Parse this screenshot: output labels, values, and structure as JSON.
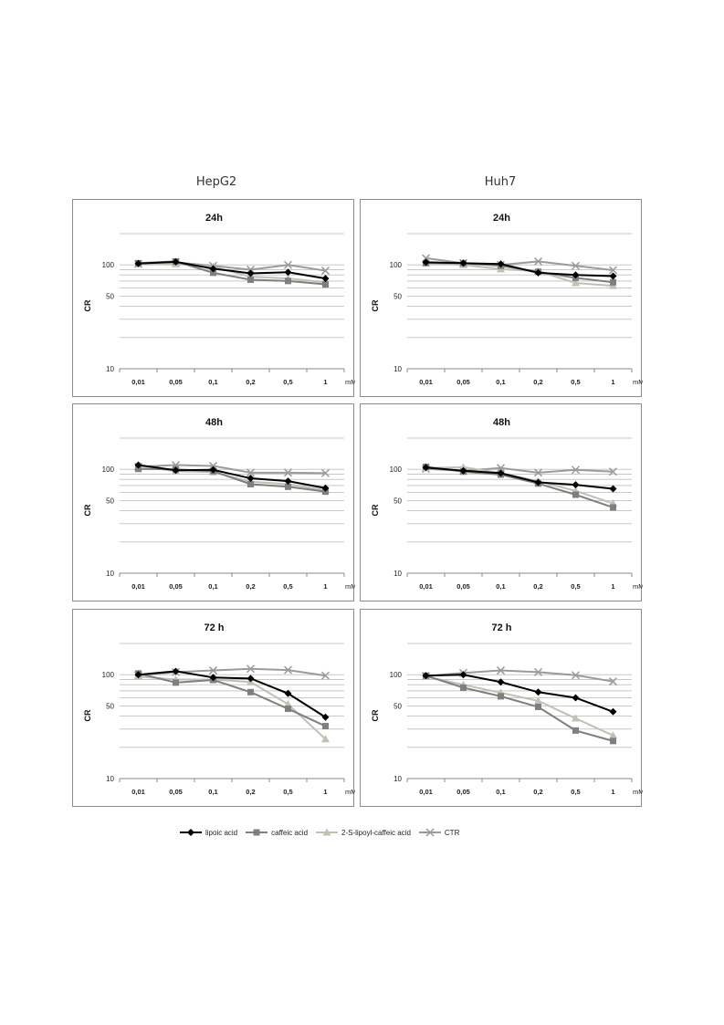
{
  "columns": [
    "HepG2",
    "Huh7"
  ],
  "colors": {
    "lipoic": "#000000",
    "caffeic": "#7f7f7f",
    "lipoyl": "#bfc1b4",
    "ctr": "#9a9a9a",
    "grid": "#c8c8c8",
    "border": "#8c8c8c"
  },
  "legend": [
    {
      "key": "lipoic",
      "label": "lipoic acid",
      "marker": "diamond"
    },
    {
      "key": "caffeic",
      "label": "caffeic acid",
      "marker": "square"
    },
    {
      "key": "lipoyl",
      "label": "2-S-lipoyl-caffeic acid",
      "marker": "triangle"
    },
    {
      "key": "ctr",
      "label": "CTR",
      "marker": "x"
    }
  ],
  "chart_data": [
    {
      "type": "line",
      "cell": "HepG2",
      "title": "24h",
      "ylabel": "CR",
      "xunit": "mM",
      "yscale": "log",
      "ylim": [
        10,
        200
      ],
      "yticks": [
        10,
        50,
        100
      ],
      "categories": [
        "0,01",
        "0,05",
        "0,1",
        "0,2",
        "0,5",
        "1"
      ],
      "series": [
        {
          "key": "lipoic",
          "name": "lipoic acid",
          "values": [
            103,
            107,
            92,
            83,
            85,
            74
          ]
        },
        {
          "key": "caffeic",
          "name": "caffeic acid",
          "values": [
            104,
            108,
            84,
            72,
            70,
            65
          ]
        },
        {
          "key": "lipoyl",
          "name": "2-S-lipoyl-caffeic acid",
          "values": [
            102,
            102,
            96,
            77,
            74,
            68
          ]
        },
        {
          "key": "ctr",
          "name": "CTR",
          "values": [
            102,
            106,
            98,
            90,
            100,
            88
          ]
        }
      ]
    },
    {
      "type": "line",
      "cell": "Huh7",
      "title": "24h",
      "ylabel": "CR",
      "xunit": "mM",
      "yscale": "log",
      "ylim": [
        10,
        200
      ],
      "yticks": [
        10,
        50,
        100
      ],
      "categories": [
        "0,01",
        "0,05",
        "0,1",
        "0,2",
        "0,5",
        "1"
      ],
      "series": [
        {
          "key": "lipoic",
          "name": "lipoic acid",
          "values": [
            106,
            104,
            102,
            84,
            80,
            78
          ]
        },
        {
          "key": "caffeic",
          "name": "caffeic acid",
          "values": [
            104,
            104,
            98,
            86,
            75,
            68
          ]
        },
        {
          "key": "lipoyl",
          "name": "2-S-lipoyl-caffeic acid",
          "values": [
            104,
            100,
            91,
            87,
            67,
            63
          ]
        },
        {
          "key": "ctr",
          "name": "CTR",
          "values": [
            116,
            104,
            100,
            108,
            98,
            89
          ]
        }
      ]
    },
    {
      "type": "line",
      "cell": "HepG2",
      "title": "48h",
      "ylabel": "CR",
      "xunit": "mM",
      "yscale": "log",
      "ylim": [
        10,
        200
      ],
      "yticks": [
        10,
        50,
        100
      ],
      "categories": [
        "0,01",
        "0,05",
        "0,1",
        "0,2",
        "0,5",
        "1"
      ],
      "series": [
        {
          "key": "lipoic",
          "name": "lipoic acid",
          "values": [
            110,
            98,
            99,
            82,
            77,
            66
          ]
        },
        {
          "key": "caffeic",
          "name": "caffeic acid",
          "values": [
            101,
            100,
            96,
            72,
            68,
            61
          ]
        },
        {
          "key": "lipoyl",
          "name": "2-S-lipoyl-caffeic acid",
          "values": [
            108,
            96,
            94,
            76,
            72,
            63
          ]
        },
        {
          "key": "ctr",
          "name": "CTR",
          "values": [
            106,
            110,
            108,
            93,
            93,
            92
          ]
        }
      ]
    },
    {
      "type": "line",
      "cell": "Huh7",
      "title": "48h",
      "ylabel": "CR",
      "xunit": "mM",
      "yscale": "log",
      "ylim": [
        10,
        200
      ],
      "yticks": [
        10,
        50,
        100
      ],
      "categories": [
        "0,01",
        "0,05",
        "0,1",
        "0,2",
        "0,5",
        "1"
      ],
      "series": [
        {
          "key": "lipoic",
          "name": "lipoic acid",
          "values": [
            104,
            97,
            92,
            75,
            71,
            65
          ]
        },
        {
          "key": "caffeic",
          "name": "caffeic acid",
          "values": [
            106,
            95,
            89,
            73,
            57,
            43
          ]
        },
        {
          "key": "lipoyl",
          "name": "2-S-lipoyl-caffeic acid",
          "values": [
            103,
            105,
            92,
            77,
            62,
            47
          ]
        },
        {
          "key": "ctr",
          "name": "CTR",
          "values": [
            101,
            97,
            103,
            93,
            99,
            95
          ]
        }
      ]
    },
    {
      "type": "line",
      "cell": "HepG2",
      "title": "72 h",
      "ylabel": "CR",
      "xunit": "mM",
      "yscale": "log",
      "ylim": [
        10,
        200
      ],
      "yticks": [
        10,
        50,
        100
      ],
      "categories": [
        "0,01",
        "0,05",
        "0,1",
        "0,2",
        "0,5",
        "1"
      ],
      "series": [
        {
          "key": "lipoic",
          "name": "lipoic acid",
          "values": [
            100,
            108,
            94,
            92,
            66,
            39
          ]
        },
        {
          "key": "caffeic",
          "name": "caffeic acid",
          "values": [
            103,
            84,
            89,
            68,
            47,
            32
          ]
        },
        {
          "key": "lipoyl",
          "name": "2-S-lipoyl-caffeic acid",
          "values": [
            96,
            90,
            90,
            85,
            52,
            24
          ]
        },
        {
          "key": "ctr",
          "name": "CTR",
          "values": [
            99,
            106,
            110,
            114,
            111,
            98
          ]
        }
      ]
    },
    {
      "type": "line",
      "cell": "Huh7",
      "title": "72 h",
      "ylabel": "CR",
      "xunit": "mM",
      "yscale": "log",
      "ylim": [
        10,
        200
      ],
      "yticks": [
        10,
        50,
        100
      ],
      "categories": [
        "0,01",
        "0,05",
        "0,1",
        "0,2",
        "0,5",
        "1"
      ],
      "series": [
        {
          "key": "lipoic",
          "name": "lipoic acid",
          "values": [
            98,
            100,
            85,
            68,
            60,
            44
          ]
        },
        {
          "key": "caffeic",
          "name": "caffeic acid",
          "values": [
            98,
            75,
            62,
            49,
            29,
            23
          ]
        },
        {
          "key": "lipoyl",
          "name": "2-S-lipoyl-caffeic acid",
          "values": [
            96,
            80,
            67,
            56,
            38,
            26
          ]
        },
        {
          "key": "ctr",
          "name": "CTR",
          "values": [
            97,
            104,
            110,
            106,
            99,
            86
          ]
        }
      ]
    }
  ]
}
